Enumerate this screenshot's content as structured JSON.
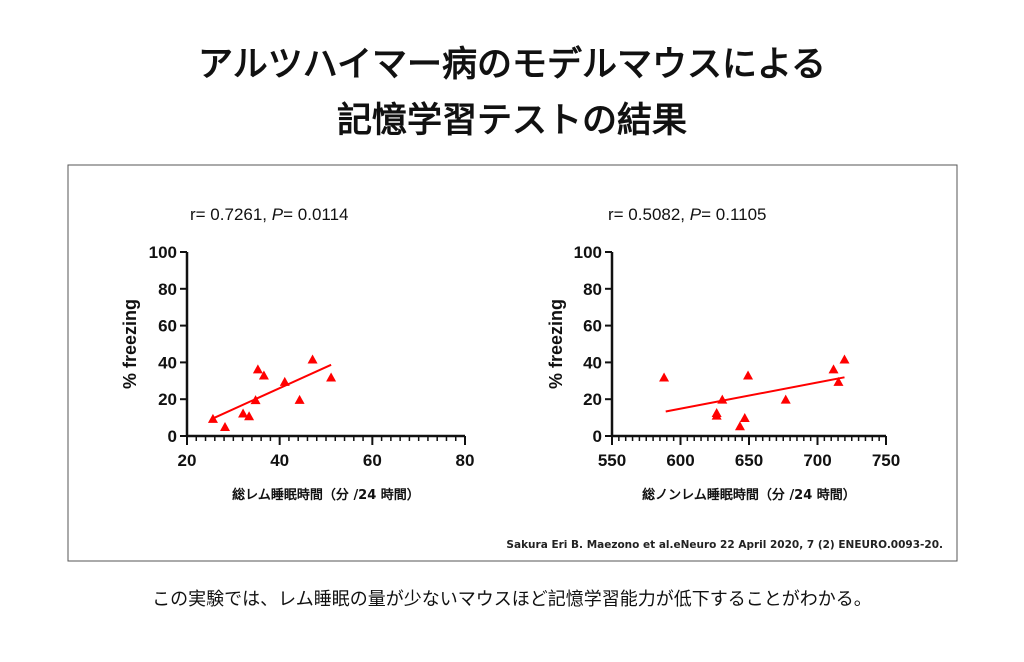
{
  "title": {
    "line1": "アルツハイマー病のモデルマウスによる",
    "line2": "記憶学習テストの結果"
  },
  "caption": "この実験では、レム睡眠の量が少ないマウスほど記憶学習能力が低下することがわかる。",
  "source_note": "Sakura Eri B. Maezono et al.eNeuro 22 April 2020, 7 (2) ENEURO.0093-20.",
  "colors": {
    "marker": "#ff0000",
    "fit_line": "#ff0000",
    "axis": "#111111",
    "frame": "#555555"
  },
  "chart_data": [
    {
      "type": "scatter",
      "stat_prefix": "r= 0.7261, ",
      "stat_p_label": "P",
      "stat_suffix": "= 0.0114",
      "xlabel": "総レム睡眠時間（分 /24 時間）",
      "ylabel": "% freezing",
      "xlim": [
        20,
        80
      ],
      "ylim": [
        0,
        100
      ],
      "xticks": [
        20,
        40,
        60,
        80
      ],
      "yticks": [
        0,
        20,
        40,
        60,
        80,
        100
      ],
      "x_minor_step": 2,
      "marker": "triangle",
      "points": [
        {
          "x": 25.6,
          "y": 9.3
        },
        {
          "x": 28.2,
          "y": 4.9
        },
        {
          "x": 32.1,
          "y": 12.2
        },
        {
          "x": 33.4,
          "y": 10.7
        },
        {
          "x": 34.8,
          "y": 19.5
        },
        {
          "x": 35.3,
          "y": 36.2
        },
        {
          "x": 36.6,
          "y": 32.9
        },
        {
          "x": 41.1,
          "y": 29.4
        },
        {
          "x": 44.3,
          "y": 19.6
        },
        {
          "x": 47.1,
          "y": 41.6
        },
        {
          "x": 51.1,
          "y": 31.8
        }
      ],
      "fit_line": [
        {
          "x": 25.9,
          "y": 9.9
        },
        {
          "x": 51.1,
          "y": 38.7
        }
      ]
    },
    {
      "type": "scatter",
      "stat_prefix": "r= 0.5082, ",
      "stat_p_label": "P",
      "stat_suffix": "= 0.1105",
      "xlabel": "総ノンレム睡眠時間（分 /24 時間）",
      "ylabel": "% freezing",
      "xlim": [
        550,
        750
      ],
      "ylim": [
        0,
        100
      ],
      "xticks": [
        550,
        600,
        650,
        700,
        750
      ],
      "yticks": [
        0,
        20,
        40,
        60,
        80,
        100
      ],
      "x_minor_step": 5,
      "marker": "triangle",
      "points": [
        {
          "x": 588,
          "y": 31.8
        },
        {
          "x": 626.4,
          "y": 12.5
        },
        {
          "x": 626.4,
          "y": 11.1
        },
        {
          "x": 630.5,
          "y": 19.8
        },
        {
          "x": 643.4,
          "y": 5.3
        },
        {
          "x": 646.9,
          "y": 9.8
        },
        {
          "x": 649.3,
          "y": 32.9
        },
        {
          "x": 676.8,
          "y": 19.8
        },
        {
          "x": 711.7,
          "y": 36.2
        },
        {
          "x": 715.3,
          "y": 29.4
        },
        {
          "x": 719.7,
          "y": 41.6
        }
      ],
      "fit_line": [
        {
          "x": 589.2,
          "y": 13.3
        },
        {
          "x": 719.7,
          "y": 31.9
        }
      ]
    }
  ]
}
